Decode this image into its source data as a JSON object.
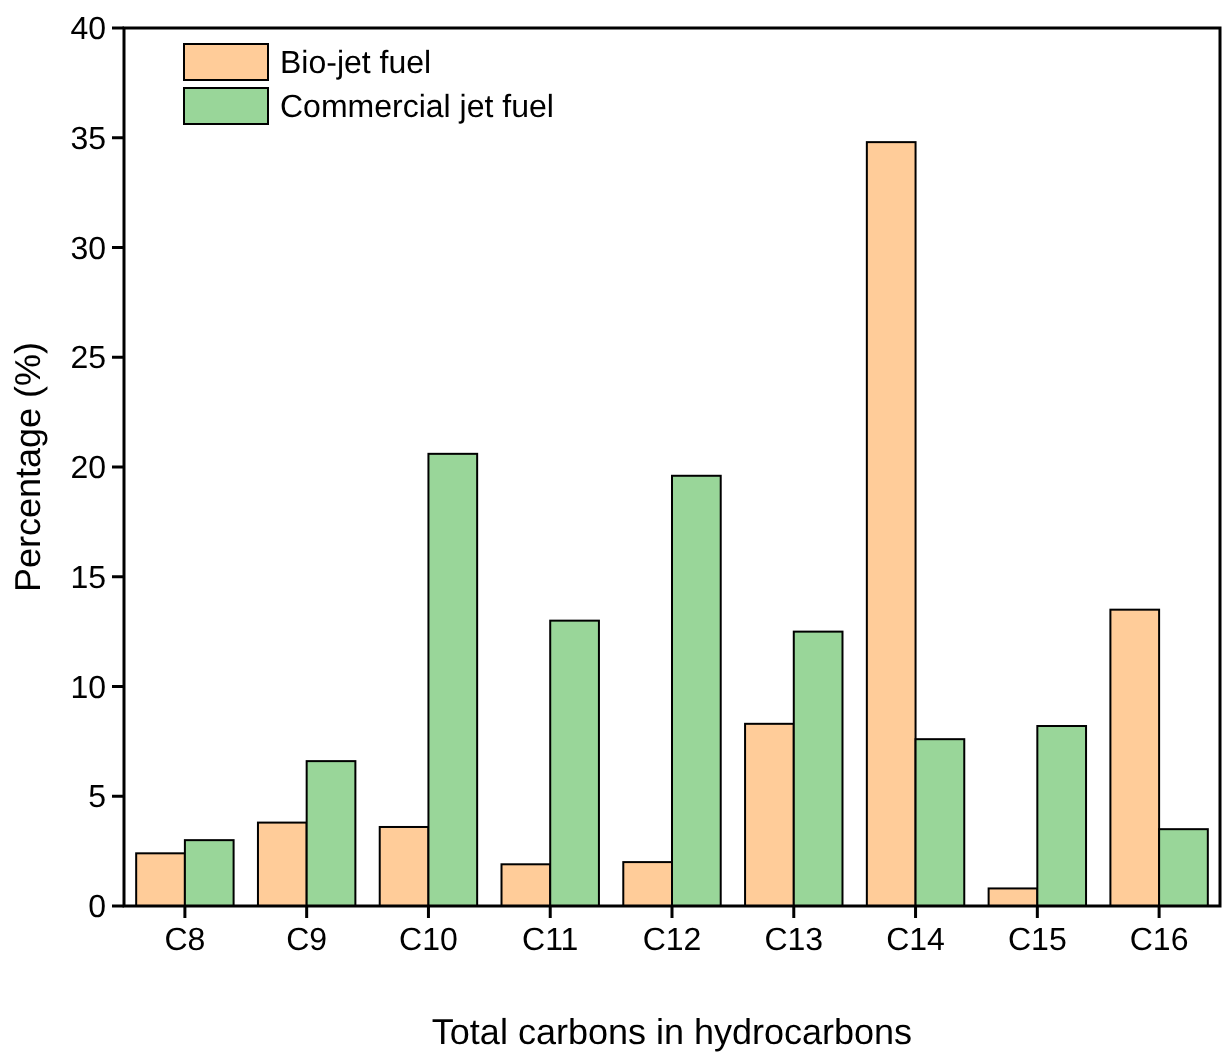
{
  "chart_data": {
    "type": "bar",
    "xlabel": "Total carbons in hydrocarbons",
    "ylabel": "Percentage (%)",
    "categories": [
      "C8",
      "C9",
      "C10",
      "C11",
      "C12",
      "C13",
      "C14",
      "C15",
      "C16"
    ],
    "series": [
      {
        "name": "Bio-jet fuel",
        "color": "#ffcc99",
        "values": [
          2.4,
          3.8,
          3.6,
          1.9,
          2.0,
          8.3,
          34.8,
          0.8,
          13.5
        ]
      },
      {
        "name": "Commercial jet fuel",
        "color": "#99d699",
        "values": [
          3.0,
          6.6,
          20.6,
          13.0,
          19.6,
          12.5,
          7.6,
          8.2,
          3.5
        ]
      }
    ],
    "ylim": [
      0,
      40
    ],
    "yticks": [
      0,
      5,
      10,
      15,
      20,
      25,
      30,
      35,
      40
    ],
    "grid": false,
    "legend": "top left"
  }
}
